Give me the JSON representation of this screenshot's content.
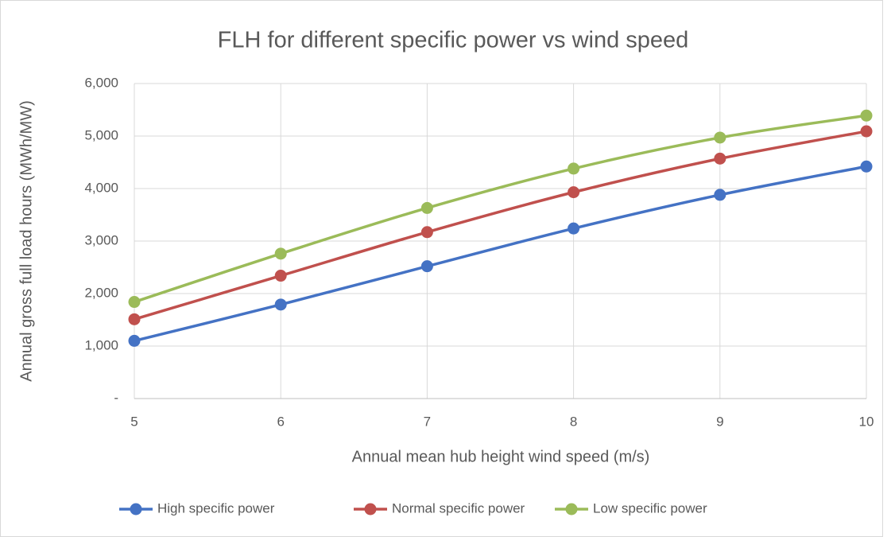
{
  "chart_data": {
    "type": "line",
    "title": "FLH for different specific power vs wind speed",
    "x_label": "Annual mean hub height wind speed (m/s)",
    "y_label": "Annual gross full load hours (MWh/MW)",
    "x": [
      5,
      6,
      7,
      8,
      9,
      10
    ],
    "xlim": [
      5,
      10
    ],
    "xticks": [
      5,
      6,
      7,
      8,
      9,
      10
    ],
    "ylim": [
      0,
      6000
    ],
    "yticks": [
      {
        "value": 0,
        "label": "-"
      },
      {
        "value": 1000,
        "label": "1,000"
      },
      {
        "value": 2000,
        "label": "2,000"
      },
      {
        "value": 3000,
        "label": "3,000"
      },
      {
        "value": 4000,
        "label": "4,000"
      },
      {
        "value": 5000,
        "label": "5,000"
      },
      {
        "value": 6000,
        "label": "6,000"
      }
    ],
    "grid": true,
    "legend": "bottom",
    "series": [
      {
        "name": "High specific power",
        "color": "#4472c4",
        "values": [
          1100,
          1790,
          2520,
          3240,
          3880,
          4420
        ]
      },
      {
        "name": "Normal specific power",
        "color": "#c0504d",
        "values": [
          1510,
          2340,
          3170,
          3930,
          4570,
          5090
        ]
      },
      {
        "name": "Low specific power",
        "color": "#9bbb59",
        "values": [
          1840,
          2760,
          3630,
          4380,
          4970,
          5390
        ]
      }
    ]
  }
}
